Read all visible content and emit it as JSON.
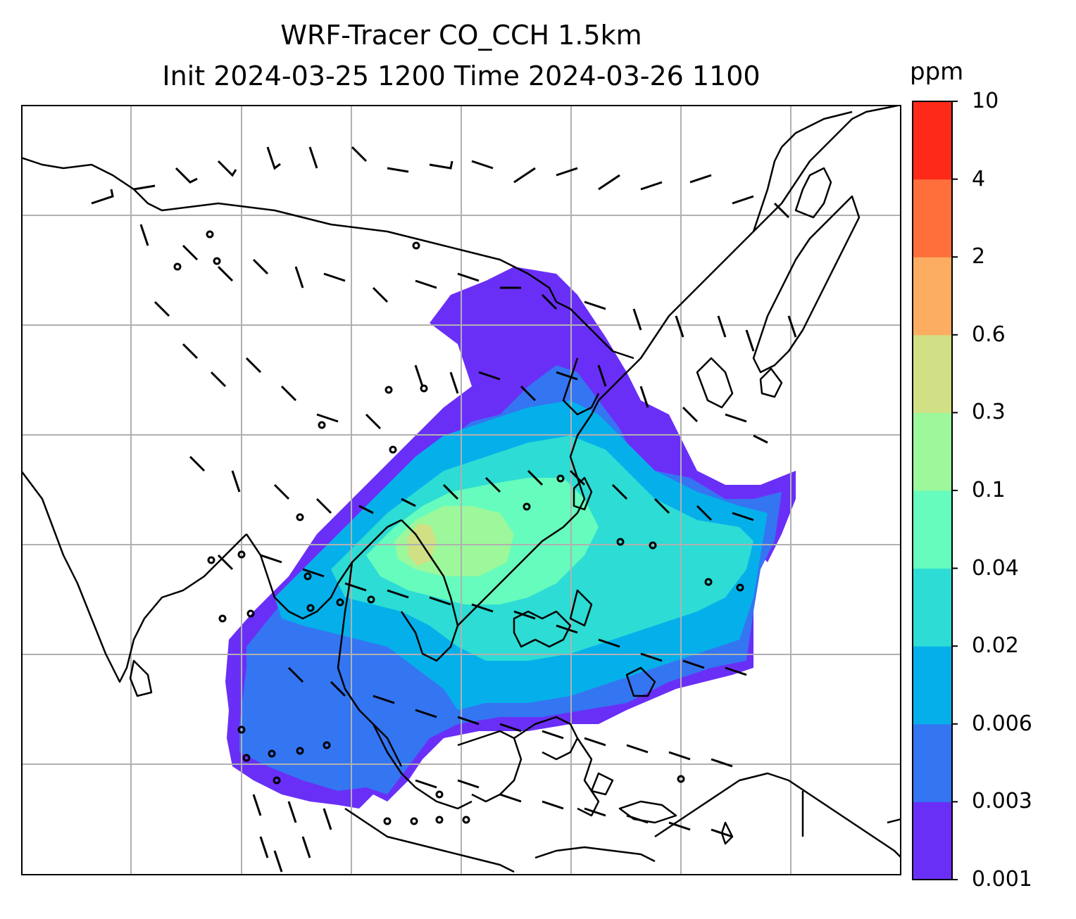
{
  "title": {
    "line1": "WRF-Tracer CO_CCH 1.5km",
    "line2": "Init 2024-03-25 1200 Time 2024-03-26 1100"
  },
  "colorbar": {
    "unit": "ppm",
    "ticks": [
      "0.001",
      "0.003",
      "0.006",
      "0.02",
      "0.04",
      "0.1",
      "0.3",
      "0.6",
      "2",
      "4",
      "10"
    ],
    "colors": [
      "#6a2ff7",
      "#3475f2",
      "#05b0ea",
      "#2ddcd4",
      "#66fcbd",
      "#9cf89b",
      "#d1e085",
      "#fdad62",
      "#fe6f3b",
      "#fd2a1a"
    ]
  },
  "map": {
    "gridlines": true,
    "coastline_color": "#000000",
    "grid_color": "#b0b0b0"
  }
}
